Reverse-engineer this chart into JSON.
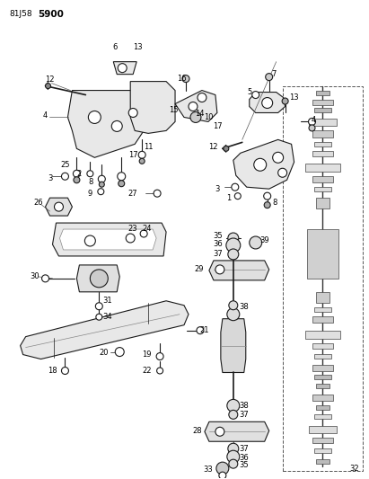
{
  "bg_color": "#ffffff",
  "fig_width": 4.11,
  "fig_height": 5.33,
  "dpi": 100,
  "line_color": "#1a1a1a",
  "lw_main": 0.8,
  "lw_thin": 0.5,
  "lw_thick": 1.2
}
